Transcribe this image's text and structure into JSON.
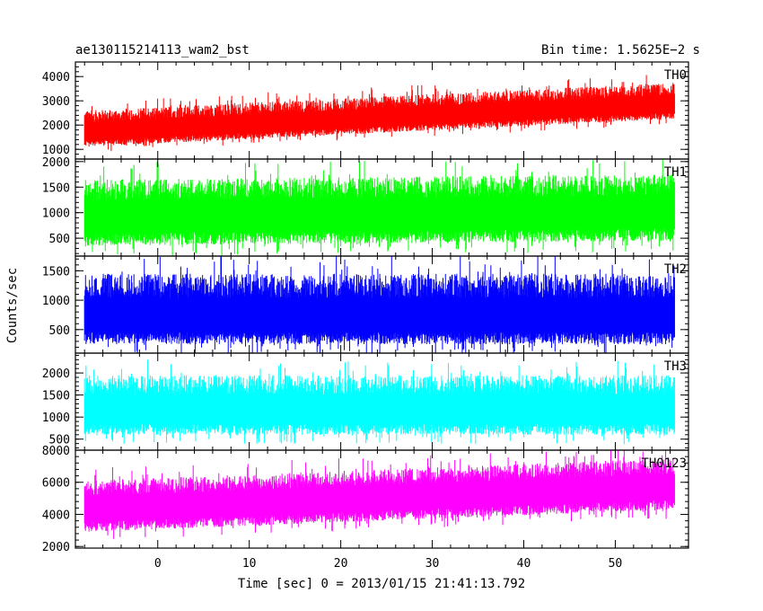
{
  "chart_data": {
    "type": "line",
    "title_left": "ae130115214113_wam2_bst",
    "title_right": "Bin time: 1.5625E−2 s",
    "xlabel": "Time [sec] 0 = 2013/01/15 21:41:13.792",
    "ylabel": "Counts/sec",
    "xlim": [
      -9,
      58
    ],
    "x_ticks": [
      0,
      10,
      20,
      30,
      40,
      50
    ],
    "x_tick_labels": [
      "0",
      "10",
      "20",
      "30",
      "40",
      "50"
    ],
    "x_data_range": [
      -8,
      56.5
    ],
    "panels": [
      {
        "name": "TH0",
        "color": "#ff0000",
        "ylim": [
          600,
          4600
        ],
        "y_ticks": [
          1000,
          2000,
          3000,
          4000
        ],
        "y_tick_labels": [
          "1000",
          "2000",
          "3000",
          "4000"
        ],
        "mean_start": 1700,
        "mean_end": 2850,
        "spread_low": 600,
        "spread_high": 900
      },
      {
        "name": "TH1",
        "color": "#00ff00",
        "ylim": [
          150,
          2050
        ],
        "y_ticks": [
          500,
          1000,
          1500,
          2000
        ],
        "y_tick_labels": [
          "500",
          "1000",
          "1500",
          "2000"
        ],
        "mean_start": 900,
        "mean_end": 1000,
        "spread_low": 550,
        "spread_high": 750
      },
      {
        "name": "TH2",
        "color": "#0000ff",
        "ylim": [
          100,
          1750
        ],
        "y_ticks": [
          500,
          1000,
          1500
        ],
        "y_tick_labels": [
          "500",
          "1000",
          "1500"
        ],
        "mean_start": 700,
        "mean_end": 700,
        "spread_low": 450,
        "spread_high": 750
      },
      {
        "name": "TH3",
        "color": "#00ffff",
        "ylim": [
          250,
          2450
        ],
        "y_ticks": [
          500,
          1000,
          1500,
          2000
        ],
        "y_tick_labels": [
          "500",
          "1000",
          "1500",
          "2000"
        ],
        "mean_start": 1150,
        "mean_end": 1150,
        "spread_low": 550,
        "spread_high": 800
      },
      {
        "name": "TH0123",
        "color": "#ff00ff",
        "ylim": [
          1900,
          8000
        ],
        "y_ticks": [
          2000,
          4000,
          6000,
          8000
        ],
        "y_tick_labels": [
          "2000",
          "4000",
          "6000",
          "8000"
        ],
        "mean_start": 4300,
        "mean_end": 5700,
        "spread_low": 1400,
        "spread_high": 1800
      }
    ]
  }
}
